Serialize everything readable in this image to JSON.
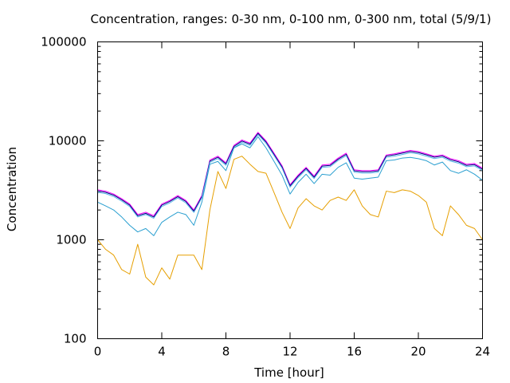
{
  "chart_data": {
    "type": "line",
    "title": "Concentration, ranges: 0-30 nm, 0-100 nm, 0-300 nm, total (5/9/1)",
    "xlabel": "Time [hour]",
    "ylabel": "Concentration",
    "xlim": [
      0,
      24
    ],
    "ylim": [
      100,
      100000
    ],
    "yscale": "log",
    "grid": false,
    "xticks": [
      0,
      4,
      8,
      12,
      16,
      20,
      24
    ],
    "xtick_labels": [
      "0",
      "4",
      "8",
      "12",
      "16",
      "20",
      "24"
    ],
    "yticks": [
      100,
      1000,
      10000,
      100000
    ],
    "ytick_labels": [
      "100",
      "1000",
      "10000",
      "100000"
    ],
    "x": [
      0,
      0.5,
      1,
      1.5,
      2,
      2.5,
      3,
      3.5,
      4,
      4.5,
      5,
      5.5,
      6,
      6.5,
      7,
      7.5,
      8,
      8.5,
      9,
      9.5,
      10,
      10.5,
      11,
      11.5,
      12,
      12.5,
      13,
      13.5,
      14,
      14.5,
      15,
      15.5,
      16,
      16.5,
      17,
      17.5,
      18,
      18.5,
      19,
      19.5,
      20,
      20.5,
      21,
      21.5,
      22,
      22.5,
      23,
      23.5,
      24
    ],
    "series": [
      {
        "color": "#ff00ff",
        "values": [
          3200,
          3100,
          2900,
          2600,
          2300,
          1800,
          1900,
          1750,
          2300,
          2500,
          2800,
          2500,
          2000,
          2800,
          6400,
          7000,
          6000,
          9000,
          10200,
          9500,
          12200,
          10000,
          7500,
          5600,
          3600,
          4500,
          5400,
          4400,
          5700,
          5800,
          6700,
          7500,
          5100,
          5000,
          5000,
          5100,
          7200,
          7400,
          7700,
          8000,
          7800,
          7400,
          7000,
          7200,
          6600,
          6300,
          5800,
          5900,
          5300
        ]
      },
      {
        "color": "#000080",
        "values": [
          3120,
          3020,
          2830,
          2540,
          2240,
          1750,
          1850,
          1700,
          2240,
          2440,
          2730,
          2440,
          1950,
          2730,
          6240,
          6830,
          5850,
          8780,
          9950,
          9260,
          11900,
          9750,
          7310,
          5460,
          3510,
          4390,
          5270,
          4290,
          5560,
          5650,
          6530,
          7310,
          4970,
          4880,
          4880,
          4970,
          7020,
          7220,
          7510,
          7800,
          7600,
          7220,
          6830,
          7020,
          6440,
          6140,
          5650,
          5750,
          5170
        ]
      },
      {
        "color": "#56b4e9",
        "values": [
          3020,
          2930,
          2740,
          2460,
          2170,
          1700,
          1800,
          1650,
          2170,
          2360,
          2650,
          2360,
          1890,
          2650,
          6050,
          6620,
          5670,
          8510,
          9650,
          8980,
          11530,
          9450,
          7090,
          5290,
          3400,
          4250,
          5100,
          4160,
          5390,
          5480,
          6330,
          7090,
          4820,
          4730,
          4730,
          4820,
          6810,
          7000,
          7280,
          7560,
          7370,
          7000,
          6620,
          6810,
          6240,
          5950,
          5480,
          5580,
          5010
        ]
      },
      {
        "color": "#2a9fd0",
        "values": [
          2400,
          2200,
          2000,
          1700,
          1400,
          1200,
          1300,
          1100,
          1500,
          1700,
          1900,
          1800,
          1400,
          2400,
          5800,
          6200,
          5000,
          8500,
          9300,
          8500,
          11000,
          8500,
          6200,
          4500,
          2900,
          3800,
          4600,
          3700,
          4600,
          4500,
          5400,
          6000,
          4200,
          4100,
          4200,
          4300,
          6300,
          6400,
          6700,
          6800,
          6600,
          6300,
          5700,
          6100,
          5000,
          4700,
          5100,
          4600,
          4000
        ]
      },
      {
        "color": "#e69f00",
        "values": [
          1000,
          800,
          700,
          500,
          450,
          900,
          420,
          350,
          520,
          400,
          700,
          700,
          700,
          500,
          2000,
          4900,
          3300,
          6500,
          7000,
          5800,
          4900,
          4700,
          3000,
          1900,
          1300,
          2100,
          2600,
          2200,
          2000,
          2500,
          2700,
          2500,
          3200,
          2200,
          1800,
          1700,
          3100,
          3000,
          3200,
          3100,
          2800,
          2400,
          1300,
          1100,
          2200,
          1800,
          1400,
          1300,
          1000
        ]
      }
    ]
  }
}
